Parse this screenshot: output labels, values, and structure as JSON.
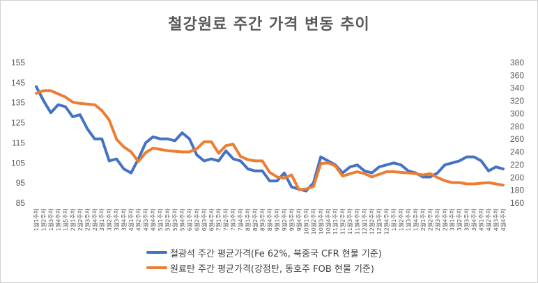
{
  "chart_data": {
    "type": "line",
    "title": "철강원료 주간 가격 변동 추이",
    "x_labels": [
      "1월1주차",
      "1월2주차",
      "1월3주차",
      "1월4주차",
      "1월5주차",
      "2월1주차",
      "2월2주차",
      "2월3주차",
      "2월4주차",
      "3월1주차",
      "3월2주차",
      "3월3주차",
      "3월4주차",
      "4월1주차",
      "4월2주차",
      "4월3주차",
      "4월4주차",
      "5월1주차",
      "5월2주차",
      "5월3주차",
      "5월4주차",
      "6월1주차",
      "6월2주차",
      "6월3주차",
      "6월4주차",
      "7월1주차",
      "7월2주차",
      "7월3주차",
      "7월4주차",
      "8월1주차",
      "8월2주차",
      "8월3주차",
      "8월4주차",
      "9월1주차",
      "9월2주차",
      "9월3주차",
      "9월4주차",
      "10월1주차",
      "10월2주차",
      "10월3주차",
      "10월4주차",
      "11월1주차",
      "11월2주차",
      "11월3주차",
      "11월4주차",
      "12월1주차",
      "12월2주차",
      "12월3주차",
      "12월4주차",
      "1월1주차",
      "1월2주차",
      "1월3주차",
      "1월4주차",
      "2월1주차",
      "2월2주차",
      "2월3주차",
      "2월4주차",
      "3월1주차",
      "3월2주차",
      "3월3주차",
      "3월4주차",
      "4월1주차",
      "4월2주차",
      "4월3주차",
      "4월4주차"
    ],
    "y_left": {
      "min": 85,
      "max": 155,
      "ticks": [
        85,
        95,
        105,
        115,
        125,
        135,
        145,
        155
      ]
    },
    "y_right": {
      "min": 160,
      "max": 380,
      "ticks": [
        160,
        180,
        200,
        220,
        240,
        260,
        280,
        300,
        320,
        340,
        360,
        380
      ]
    },
    "grid": false,
    "legend_position": "bottom",
    "series": [
      {
        "name": "철광석 주간 평균가격(Fe 62%, 북중국 CFR 현물 기준)",
        "axis": "left",
        "color": "#4472C4",
        "values": [
          143,
          136,
          130,
          134,
          133,
          128,
          129,
          122,
          117,
          117,
          106,
          107,
          102,
          100,
          107,
          115,
          118,
          117,
          117,
          116,
          120,
          117,
          109,
          106,
          107,
          106,
          111,
          107,
          106,
          102,
          101,
          101,
          96,
          96,
          100,
          93,
          92,
          91,
          95,
          108,
          106,
          104,
          100,
          103,
          104,
          101,
          100,
          103,
          104,
          105,
          104,
          101,
          100,
          98,
          98,
          100,
          104,
          105,
          106,
          108,
          108,
          106,
          101,
          103,
          102
        ]
      },
      {
        "name": "원료탄 주간 평균가격(강점탄, 동호주 FOB 현물 기준)",
        "axis": "right",
        "color": "#ED7D31",
        "values": [
          332,
          336,
          336,
          331,
          326,
          318,
          316,
          315,
          314,
          305,
          290,
          260,
          248,
          240,
          225,
          239,
          246,
          244,
          242,
          241,
          240,
          240,
          245,
          256,
          256,
          238,
          250,
          252,
          233,
          228,
          226,
          226,
          208,
          201,
          199,
          204,
          181,
          182,
          186,
          222,
          223,
          218,
          202,
          206,
          209,
          206,
          201,
          205,
          209,
          209,
          208,
          207,
          206,
          204,
          206,
          200,
          195,
          192,
          192,
          190,
          190,
          191,
          192,
          190,
          188
        ]
      }
    ]
  }
}
